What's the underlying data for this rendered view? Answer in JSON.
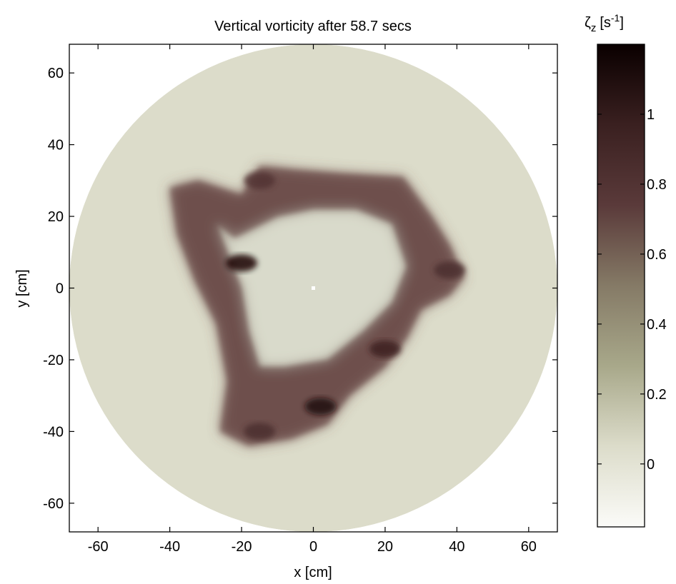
{
  "chart_data": {
    "type": "heatmap",
    "title": "Vertical vorticity after 58.7 secs",
    "xlabel": "x [cm]",
    "ylabel": "y [cm]",
    "xlim": [
      -68,
      68
    ],
    "ylim": [
      -68,
      68
    ],
    "x_ticks": [
      -60,
      -40,
      -20,
      0,
      20,
      40,
      60
    ],
    "y_ticks": [
      -60,
      -40,
      -20,
      0,
      20,
      40,
      60
    ],
    "x_tick_labels": [
      "-60",
      "-40",
      "-20",
      "0",
      "20",
      "40",
      "60"
    ],
    "y_tick_labels": [
      "-60",
      "-40",
      "-20",
      "0",
      "20",
      "40",
      "60"
    ],
    "domain_radius": 68,
    "center_marker": [
      0,
      0
    ],
    "grid": false,
    "colorbar": {
      "label_symbol": "ζ",
      "label_subscript": "z",
      "label_unit": "[s",
      "label_exponent": "-1",
      "label_unit_end": "]",
      "range": [
        -0.18,
        1.2
      ],
      "ticks": [
        0,
        0.2,
        0.4,
        0.6,
        0.8,
        1
      ],
      "tick_labels": [
        "0",
        "0.2",
        "0.4",
        "0.6",
        "0.8",
        "1"
      ],
      "colors": [
        "#fbfbf8",
        "#dcdcca",
        "#a8a88a",
        "#857a66",
        "#5a3a3a",
        "#3a2020",
        "#0a0000"
      ],
      "position": "right"
    },
    "background_level": 0.05,
    "features": [
      {
        "x": -20,
        "y": 7,
        "value": 1.15
      },
      {
        "x": 2,
        "y": -33,
        "value": 1.1
      },
      {
        "x": 20,
        "y": -17,
        "value": 0.95
      },
      {
        "x": 38,
        "y": 5,
        "value": 0.85
      },
      {
        "x": -15,
        "y": 30,
        "value": 0.8
      },
      {
        "x": -15,
        "y": -40,
        "value": 0.85
      }
    ]
  }
}
